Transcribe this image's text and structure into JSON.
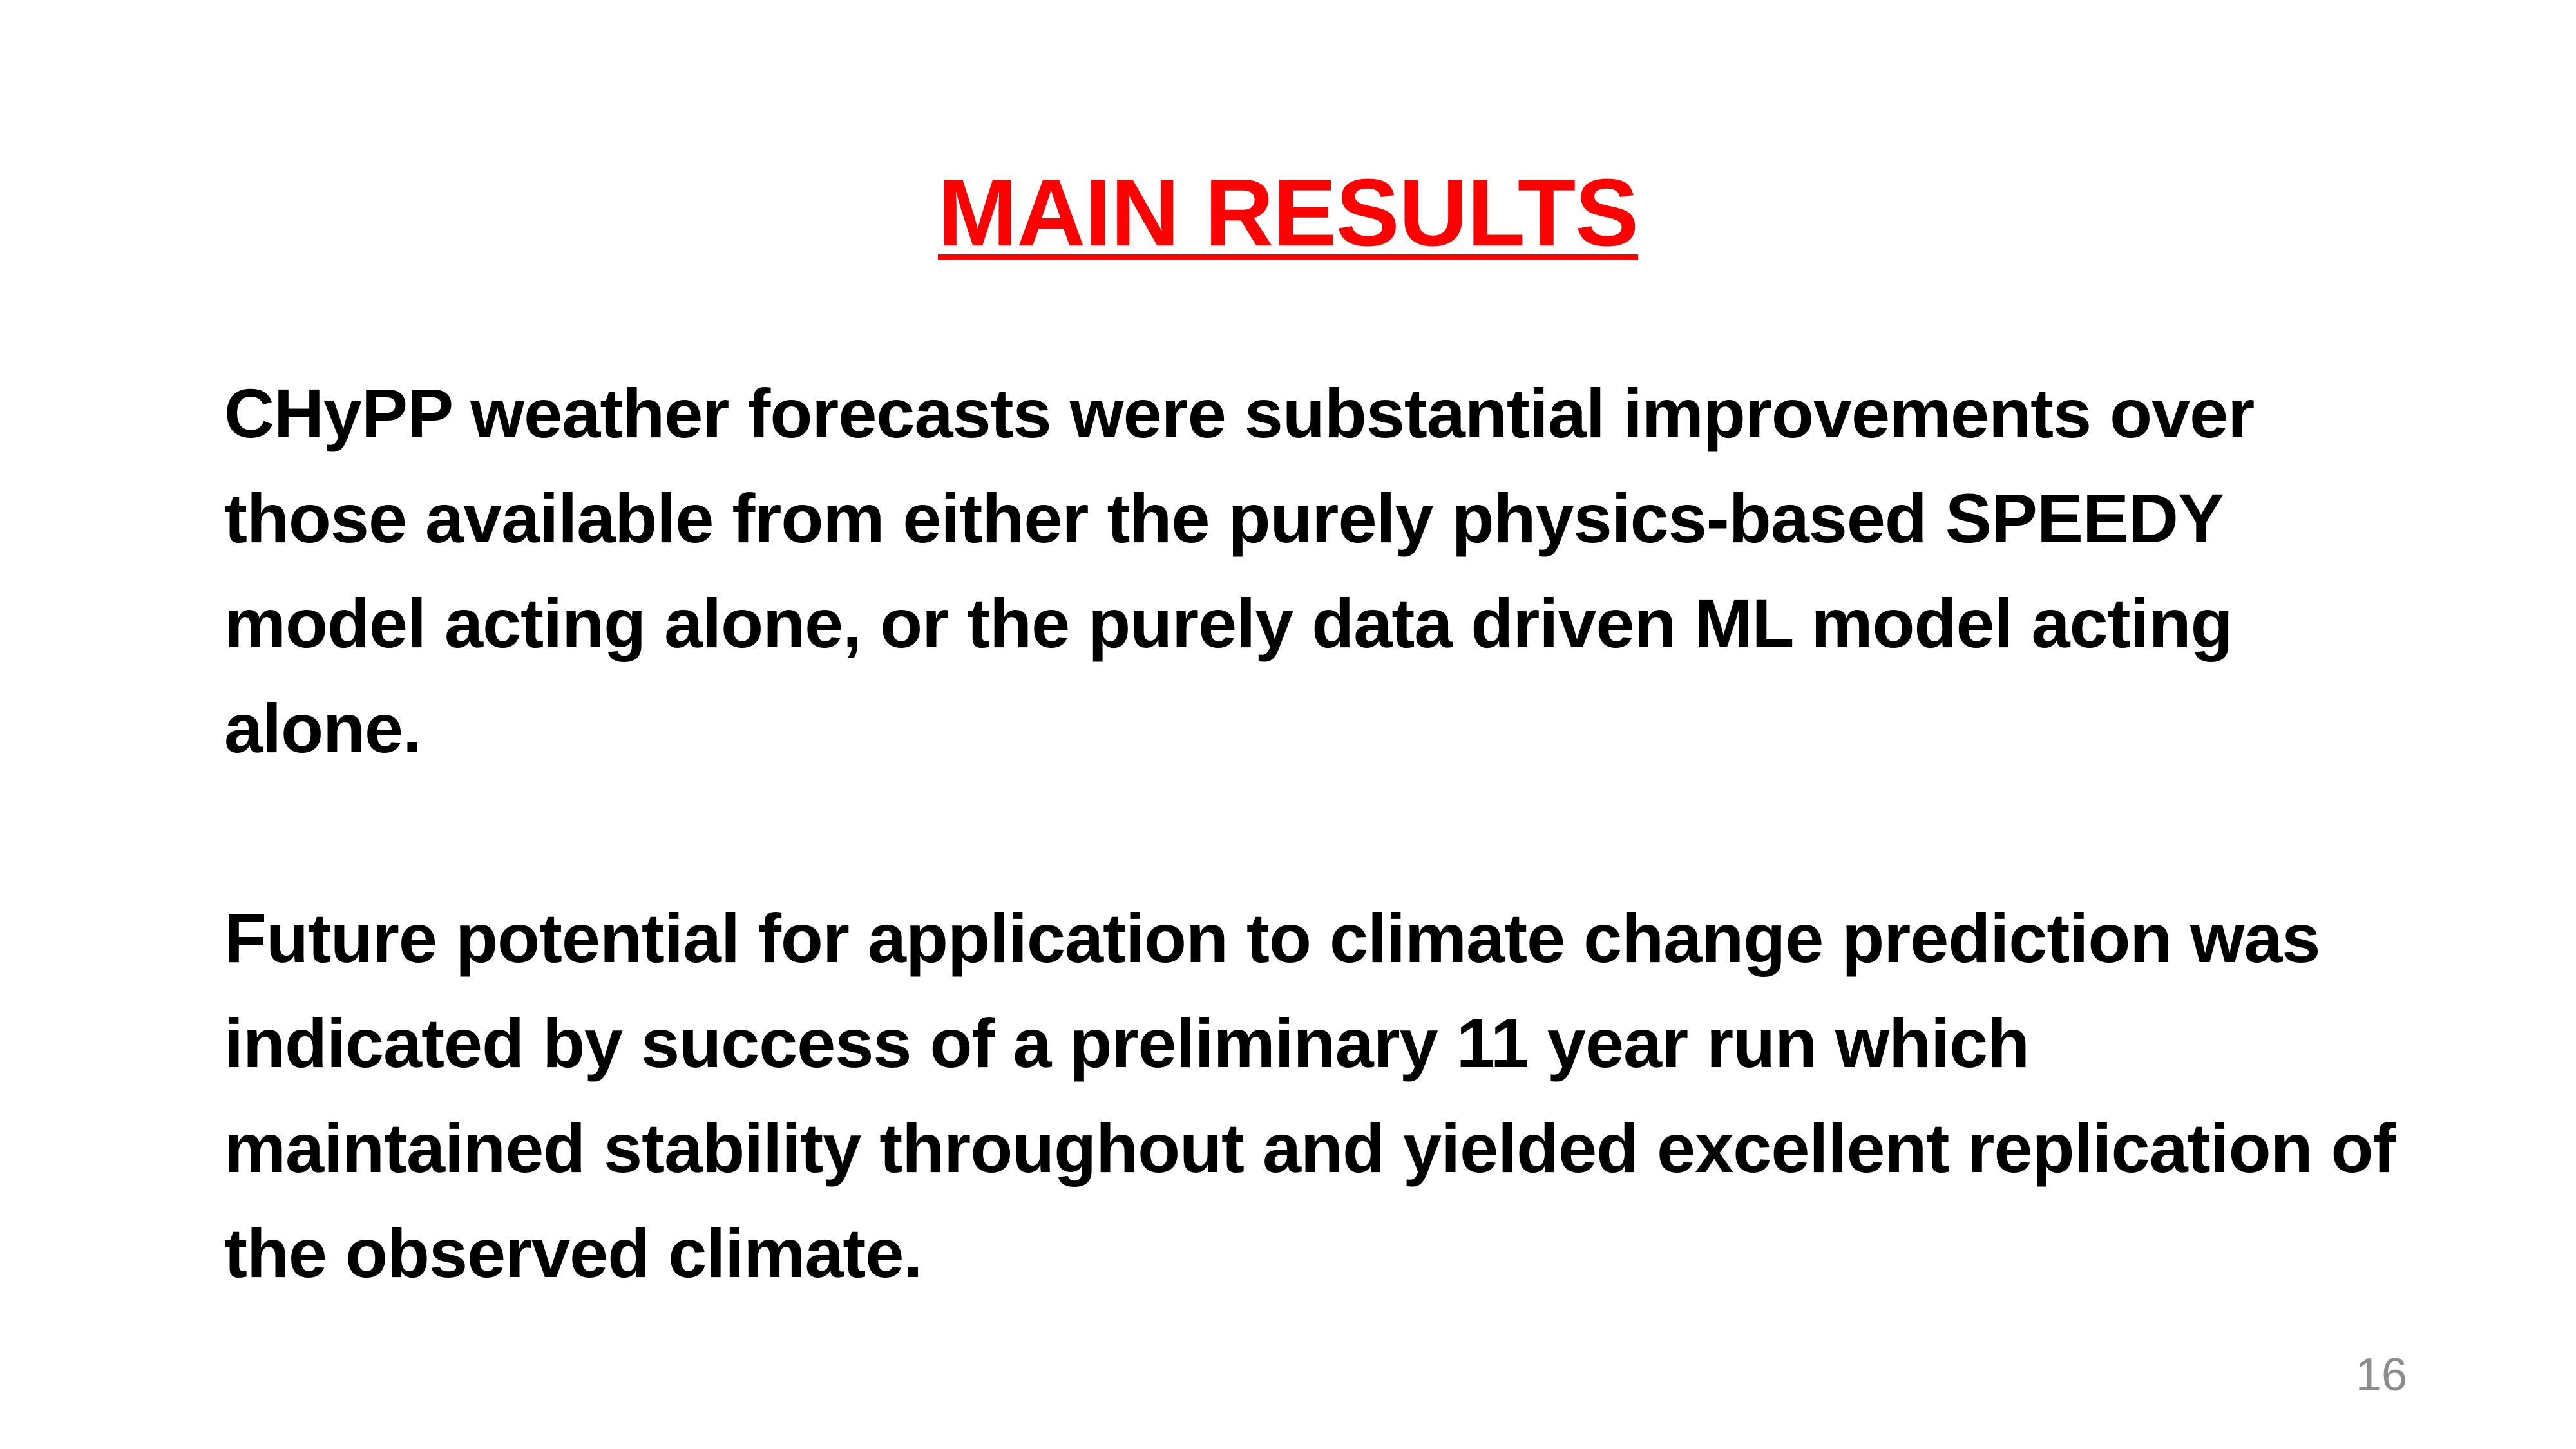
{
  "slide": {
    "title": "MAIN RESULTS",
    "paragraphs": [
      "CHyPP weather forecasts were substantial improvements over those available from either the purely physics-based SPEEDY model acting alone, or the purely data driven ML model acting alone.",
      "Future potential for application to climate change prediction was indicated by success of a preliminary 11 year run which maintained stability throughout and yielded excellent replication of the observed climate."
    ],
    "page_number": "16"
  },
  "colors": {
    "title": "#ff0000",
    "body_text": "#000000",
    "page_number": "#8c8c8c",
    "background": "#ffffff"
  }
}
